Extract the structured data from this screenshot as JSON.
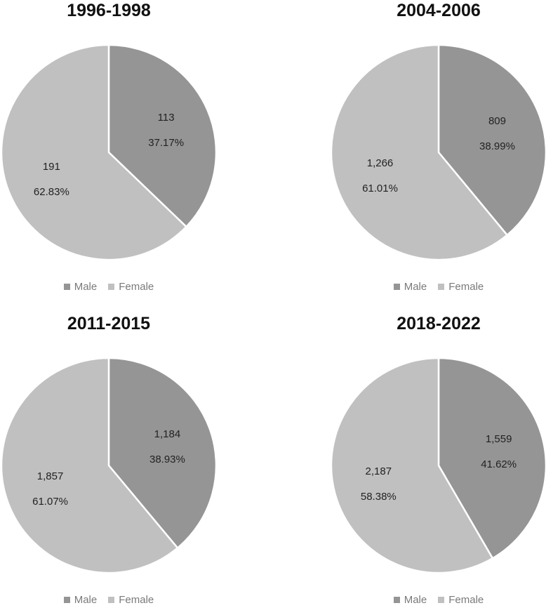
{
  "colors": {
    "male": "#959595",
    "female": "#c0c0c0",
    "separator": "#ffffff"
  },
  "chart_data": [
    {
      "type": "pie",
      "title": "1996-1998",
      "legend_position": "bottom",
      "slices": [
        {
          "name": "Male",
          "value": 113,
          "value_label": "113",
          "percent_label": "37.17%"
        },
        {
          "name": "Female",
          "value": 191,
          "value_label": "191",
          "percent_label": "62.83%"
        }
      ]
    },
    {
      "type": "pie",
      "title": "2004-2006",
      "legend_position": "bottom",
      "slices": [
        {
          "name": "Male",
          "value": 809,
          "value_label": "809",
          "percent_label": "38.99%"
        },
        {
          "name": "Female",
          "value": 1266,
          "value_label": "1,266",
          "percent_label": "61.01%"
        }
      ]
    },
    {
      "type": "pie",
      "title": "2011-2015",
      "legend_position": "bottom",
      "slices": [
        {
          "name": "Male",
          "value": 1184,
          "value_label": "1,184",
          "percent_label": "38.93%"
        },
        {
          "name": "Female",
          "value": 1857,
          "value_label": "1,857",
          "percent_label": "61.07%"
        }
      ]
    },
    {
      "type": "pie",
      "title": "2018-2022",
      "legend_position": "bottom",
      "slices": [
        {
          "name": "Male",
          "value": 1559,
          "value_label": "1,559",
          "percent_label": "41.62%"
        },
        {
          "name": "Female",
          "value": 2187,
          "value_label": "2,187",
          "percent_label": "58.38%"
        }
      ]
    }
  ]
}
